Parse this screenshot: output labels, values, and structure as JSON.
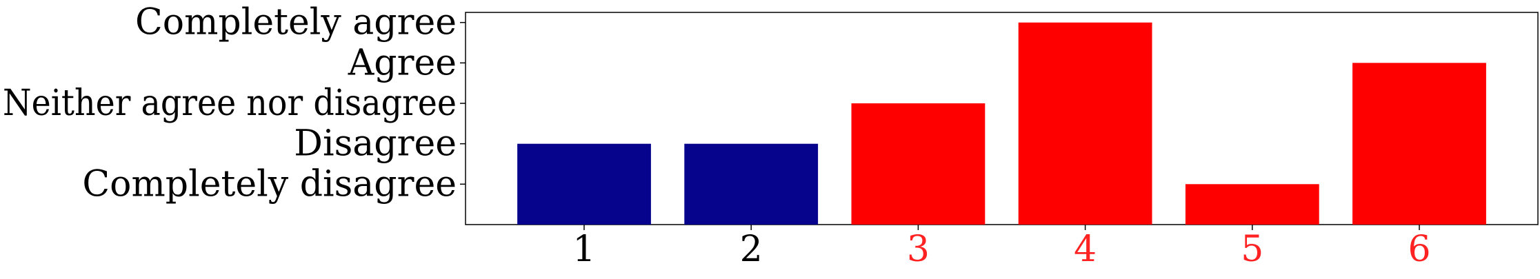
{
  "chart_data": {
    "type": "bar",
    "categories": [
      "1",
      "2",
      "3",
      "4",
      "5",
      "6"
    ],
    "values": [
      2,
      2,
      3,
      5,
      1,
      4
    ],
    "bar_colors": [
      "#06038c",
      "#06038c",
      "#ff0000",
      "#ff0000",
      "#ff0000",
      "#ff0000"
    ],
    "category_label_colors": [
      "#000000",
      "#000000",
      "#ff2222",
      "#ff2222",
      "#ff2222",
      "#ff2222"
    ],
    "y_ticks": [
      {
        "value": 1,
        "label": "Completely disagree"
      },
      {
        "value": 2,
        "label": "Disagree"
      },
      {
        "value": 3,
        "label": "Neither agree nor disagree"
      },
      {
        "value": 4,
        "label": "Agree"
      },
      {
        "value": 5,
        "label": "Completely agree"
      }
    ],
    "ylim": [
      0,
      5.25
    ],
    "xlim": [
      0.29,
      6.71
    ],
    "title": "",
    "xlabel": "",
    "ylabel": "",
    "grid": false,
    "legend": "none"
  }
}
